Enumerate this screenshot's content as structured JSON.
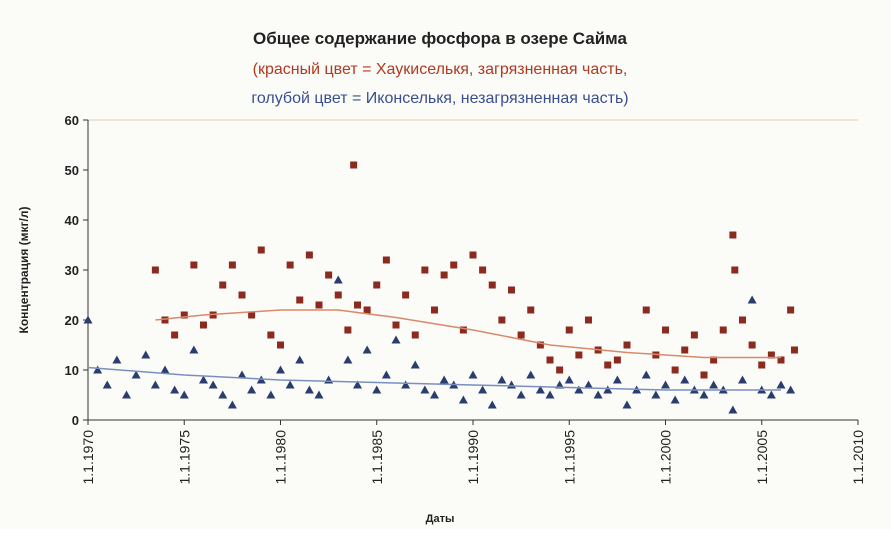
{
  "chart_data": {
    "type": "scatter",
    "title": "Общее содержание фосфора в озере Сайма",
    "subtitle": [
      "(красный цвет = Хаукиселькя, загрязненная часть,",
      "голубой цвет = Иконселькя, незагрязненная часть)"
    ],
    "xlabel": "Даты",
    "ylabel": "Концентрация (мкг/л)",
    "xlim": [
      1970,
      2010
    ],
    "ylim": [
      0,
      60
    ],
    "xticks": [
      {
        "value": 1970,
        "label": "1.1.1970"
      },
      {
        "value": 1975,
        "label": "1.1.1975"
      },
      {
        "value": 1980,
        "label": "1.1.1980"
      },
      {
        "value": 1985,
        "label": "1.1.1985"
      },
      {
        "value": 1990,
        "label": "1.1.1990"
      },
      {
        "value": 1995,
        "label": "1.1.1995"
      },
      {
        "value": 2000,
        "label": "1.1.2000"
      },
      {
        "value": 2005,
        "label": "1.1.2005"
      },
      {
        "value": 2010,
        "label": "1.1.2010"
      }
    ],
    "yticks": [
      0,
      10,
      20,
      30,
      40,
      50,
      60
    ],
    "grid": false,
    "series": [
      {
        "color": "#8b2a1f",
        "marker": "square",
        "x": [
          1973.5,
          1974,
          1974.5,
          1975,
          1975.5,
          1976,
          1976.5,
          1977,
          1977.5,
          1978,
          1978.5,
          1979,
          1979.5,
          1980,
          1980.5,
          1981,
          1981.5,
          1982,
          1982.5,
          1983,
          1983.5,
          1983.8,
          1984,
          1984.5,
          1985,
          1985.5,
          1986,
          1986.5,
          1987,
          1987.5,
          1988,
          1988.5,
          1989,
          1989.5,
          1990,
          1990.5,
          1991,
          1991.5,
          1992,
          1992.5,
          1993,
          1993.5,
          1994,
          1994.5,
          1995,
          1995.5,
          1996,
          1996.5,
          1997,
          1997.5,
          1998,
          1999,
          1999.5,
          2000,
          2000.5,
          2001,
          2001.5,
          2002,
          2002.5,
          2003,
          2003.5,
          2003.6,
          2004,
          2004.5,
          2005,
          2005.5,
          2006,
          2006.5,
          2006.7
        ],
        "values": [
          30,
          20,
          17,
          21,
          31,
          19,
          21,
          27,
          31,
          25,
          21,
          34,
          17,
          15,
          31,
          24,
          33,
          23,
          29,
          25,
          18,
          51,
          23,
          22,
          27,
          32,
          19,
          25,
          17,
          30,
          22,
          29,
          31,
          18,
          33,
          30,
          27,
          20,
          26,
          17,
          22,
          15,
          12,
          10,
          18,
          13,
          20,
          14,
          11,
          12,
          15,
          22,
          13,
          18,
          10,
          14,
          17,
          9,
          12,
          18,
          37,
          30,
          20,
          15,
          11,
          13,
          12,
          22,
          14
        ]
      },
      {
        "color": "#2a3d6e",
        "marker": "triangle",
        "x": [
          1970,
          1970.5,
          1971,
          1971.5,
          1972,
          1972.5,
          1973,
          1973.5,
          1974,
          1974.5,
          1975,
          1975.5,
          1976,
          1976.5,
          1977,
          1977.5,
          1978,
          1978.5,
          1979,
          1979.5,
          1980,
          1980.5,
          1981,
          1981.5,
          1982,
          1982.5,
          1983,
          1983.5,
          1984,
          1984.5,
          1985,
          1985.5,
          1986,
          1986.5,
          1987,
          1987.5,
          1988,
          1988.5,
          1989,
          1989.5,
          1990,
          1990.5,
          1991,
          1991.5,
          1992,
          1992.5,
          1993,
          1993.5,
          1994,
          1994.5,
          1995,
          1995.5,
          1996,
          1996.5,
          1997,
          1997.5,
          1998,
          1998.5,
          1999,
          1999.5,
          2000,
          2000.5,
          2001,
          2001.5,
          2002,
          2002.5,
          2003,
          2003.5,
          2004,
          2004.5,
          2005,
          2005.5,
          2006,
          2006.5
        ],
        "values": [
          20,
          10,
          7,
          12,
          5,
          9,
          13,
          7,
          10,
          6,
          5,
          14,
          8,
          7,
          5,
          3,
          9,
          6,
          8,
          5,
          10,
          7,
          12,
          6,
          5,
          8,
          28,
          12,
          7,
          14,
          6,
          9,
          16,
          7,
          11,
          6,
          5,
          8,
          7,
          4,
          9,
          6,
          3,
          8,
          7,
          5,
          9,
          6,
          5,
          7,
          8,
          6,
          7,
          5,
          6,
          8,
          3,
          6,
          9,
          5,
          7,
          4,
          8,
          6,
          5,
          7,
          6,
          2,
          8,
          24,
          6,
          5,
          7,
          6
        ]
      },
      {
        "color": "#d98a6a",
        "marker": "line",
        "x": [
          1973.5,
          1976,
          1980,
          1983,
          1986,
          1990,
          1994,
          1998,
          2002,
          2006
        ],
        "values": [
          20,
          21,
          22,
          22,
          20.5,
          18,
          15,
          13.5,
          12.5,
          12.5
        ]
      },
      {
        "color": "#7a8fc0",
        "marker": "line",
        "x": [
          1970,
          1975,
          1980,
          1985,
          1990,
          1995,
          2000,
          2006
        ],
        "values": [
          10.5,
          9,
          8,
          7.5,
          7,
          6.5,
          6,
          6
        ]
      }
    ]
  }
}
